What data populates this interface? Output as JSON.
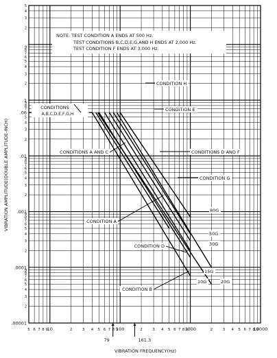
{
  "chart_data": {
    "type": "line",
    "xlabel": "VIBRATION FREQUENCY(Hz)",
    "ylabel": "VIBRATION AMPLITUDE(DOUBLE AMPLITUDE-INCH)",
    "x_scale": "log",
    "y_scale": "log",
    "xlim": [
      5,
      10000
    ],
    "ylim": [
      1e-05,
      5
    ],
    "grid": true,
    "x_ticks_major": [
      "10",
      "100",
      "1000",
      "10000"
    ],
    "x_ticks_minor": [
      "5",
      "6",
      "7",
      "8",
      "9",
      "2",
      "3",
      "4",
      "5",
      "6",
      "7",
      "8",
      "9",
      "2",
      "3",
      "4",
      "5",
      "6",
      "7",
      "8",
      "9",
      "2",
      "3",
      "4",
      "5",
      "6",
      "7",
      "8",
      "9"
    ],
    "y_ticks_major": [
      ".00001",
      ".0001",
      ".001",
      ".01",
      ".1"
    ],
    "y_tick_extra": ".06",
    "y_ticks_minor": [
      "2",
      "3",
      "4",
      "5",
      "6",
      "7",
      "8",
      "9"
    ],
    "note_lines": [
      "NOTE: TEST CONDITION A ENDS AT 500 Hz.",
      "TEST CONDITIONS B,C,D,E,G,AND H ENDS AT 2,000 Hz.",
      "TEST CONDITION F ENDS AT 3,000 Hz."
    ],
    "plateau_amplitude": 0.06,
    "plateau_label": "CONDITIONS A,B,C,D,E,F,G,H",
    "series": [
      {
        "name": "CONDITION H",
        "g_label": "80G",
        "x": [
          100,
          1000
        ],
        "y": [
          0.06,
          0.0008
        ]
      },
      {
        "name": "CONDITION E",
        "g_label": "",
        "x": [
          90,
          2000
        ],
        "y": [
          0.06,
          0.0001
        ]
      },
      {
        "name": "CONDITIONS D AND F",
        "g_label": "50G",
        "x": [
          80,
          1000
        ],
        "y": [
          0.06,
          0.0004
        ]
      },
      {
        "name": "CONDITION G",
        "g_label": "30G",
        "x": [
          70,
          1000
        ],
        "y": [
          0.06,
          0.0003
        ]
      },
      {
        "name": "CONDITIONS A AND C",
        "g_label": "",
        "x": [
          60,
          1000
        ],
        "y": [
          0.06,
          0.0002
        ]
      },
      {
        "name": "CONDITION D",
        "g_label": "15G",
        "x": [
          50,
          1000
        ],
        "y": [
          0.06,
          0.00015
        ]
      },
      {
        "name": "CONDITION A",
        "g_label": "",
        "x": [
          45,
          500
        ],
        "y": [
          0.06,
          0.0005
        ]
      },
      {
        "name": "CONDITION B",
        "g_label": "10G",
        "x": [
          40,
          1000
        ],
        "y": [
          0.06,
          7e-05
        ]
      },
      {
        "name": "",
        "g_label": "20G",
        "x": [
          48,
          2000
        ],
        "y": [
          0.06,
          5e-05
        ]
      }
    ],
    "g_labels": [
      "80G",
      "50G",
      "30G",
      "15G",
      "10G",
      "20G"
    ],
    "annotations": [
      "79",
      "161.3"
    ]
  }
}
